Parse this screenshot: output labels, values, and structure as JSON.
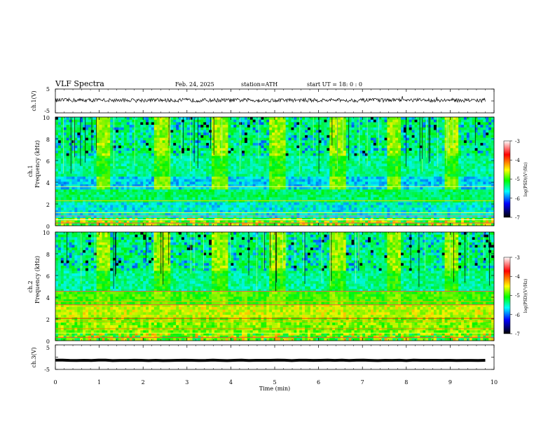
{
  "header": {
    "title": "VLF  Spectra",
    "date": "Feb. 24, 2025",
    "station": "station=ATH",
    "start_ut": "start  UT  =    18: 0   : 0"
  },
  "chart_data": [
    {
      "type": "line",
      "panel": "ch1-waveform",
      "ylabel": "ch.1(V)",
      "ylim": [
        -5,
        5
      ],
      "y_ticks": [
        "5",
        "-5"
      ],
      "x_range_min": [
        0,
        9.8
      ],
      "baseline_v": 0.3,
      "amplitude_v": 0.8
    },
    {
      "type": "heatmap",
      "panel": "ch1-spectrogram",
      "ylabel": [
        "ch.1",
        "Frequency  (kHz)"
      ],
      "xlim": [
        0,
        10
      ],
      "ylim": [
        0,
        10
      ],
      "y_ticks": [
        "0",
        "2",
        "4",
        "6",
        "8",
        "10"
      ],
      "tone_blocks_min": [
        [
          0.95,
          1.28
        ],
        [
          2.27,
          2.6
        ],
        [
          3.58,
          3.93
        ],
        [
          4.88,
          5.22
        ],
        [
          6.25,
          6.6
        ],
        [
          7.57,
          7.9
        ],
        [
          8.88,
          9.2
        ]
      ],
      "tone_band_khz": [
        3.5,
        4.5
      ],
      "colorbar": {
        "label": "log(PSD)(V²/Hz)",
        "range": [
          -7,
          -3
        ],
        "ticks": [
          "-3",
          "-4",
          "-5",
          "-6",
          "-7"
        ],
        "colors": [
          "#ffffff",
          "#ff0000",
          "#ffff00",
          "#00ff00",
          "#00ffff",
          "#0000ff",
          "#000000"
        ]
      }
    },
    {
      "type": "heatmap",
      "panel": "ch2-spectrogram",
      "ylabel": [
        "ch.2",
        "Frequency  (kHz)"
      ],
      "xlim": [
        0,
        10
      ],
      "ylim": [
        0,
        10
      ],
      "y_ticks": [
        "0",
        "2",
        "4",
        "6",
        "8",
        "10"
      ],
      "tone_blocks_min": [
        [
          0.95,
          1.28
        ],
        [
          2.27,
          2.6
        ],
        [
          3.58,
          3.93
        ],
        [
          4.88,
          5.22
        ],
        [
          6.25,
          6.6
        ],
        [
          7.57,
          7.9
        ],
        [
          8.88,
          9.2
        ]
      ],
      "tone_band_khz": [
        3.5,
        4.5
      ],
      "colorbar": {
        "label": "log(PSD)(V²/Hz)",
        "range": [
          -7,
          -3
        ],
        "ticks": [
          "-3",
          "-4",
          "-5",
          "-6",
          "-7"
        ],
        "colors": [
          "#ffffff",
          "#ff0000",
          "#ffff00",
          "#00ff00",
          "#00ffff",
          "#0000ff",
          "#000000"
        ]
      }
    },
    {
      "type": "line",
      "panel": "ch3-waveform",
      "ylabel": "ch.3(V)",
      "ylim": [
        -5,
        5
      ],
      "y_ticks": [
        "5",
        "-5"
      ],
      "x_range_min": [
        0,
        9.8
      ],
      "baseline_v": -1.3,
      "amplitude_v": 0.1
    }
  ],
  "x_axis": {
    "label": "Time  (min)",
    "ticks": [
      "0",
      "1",
      "2",
      "3",
      "4",
      "5",
      "6",
      "7",
      "8",
      "9",
      "10"
    ]
  }
}
